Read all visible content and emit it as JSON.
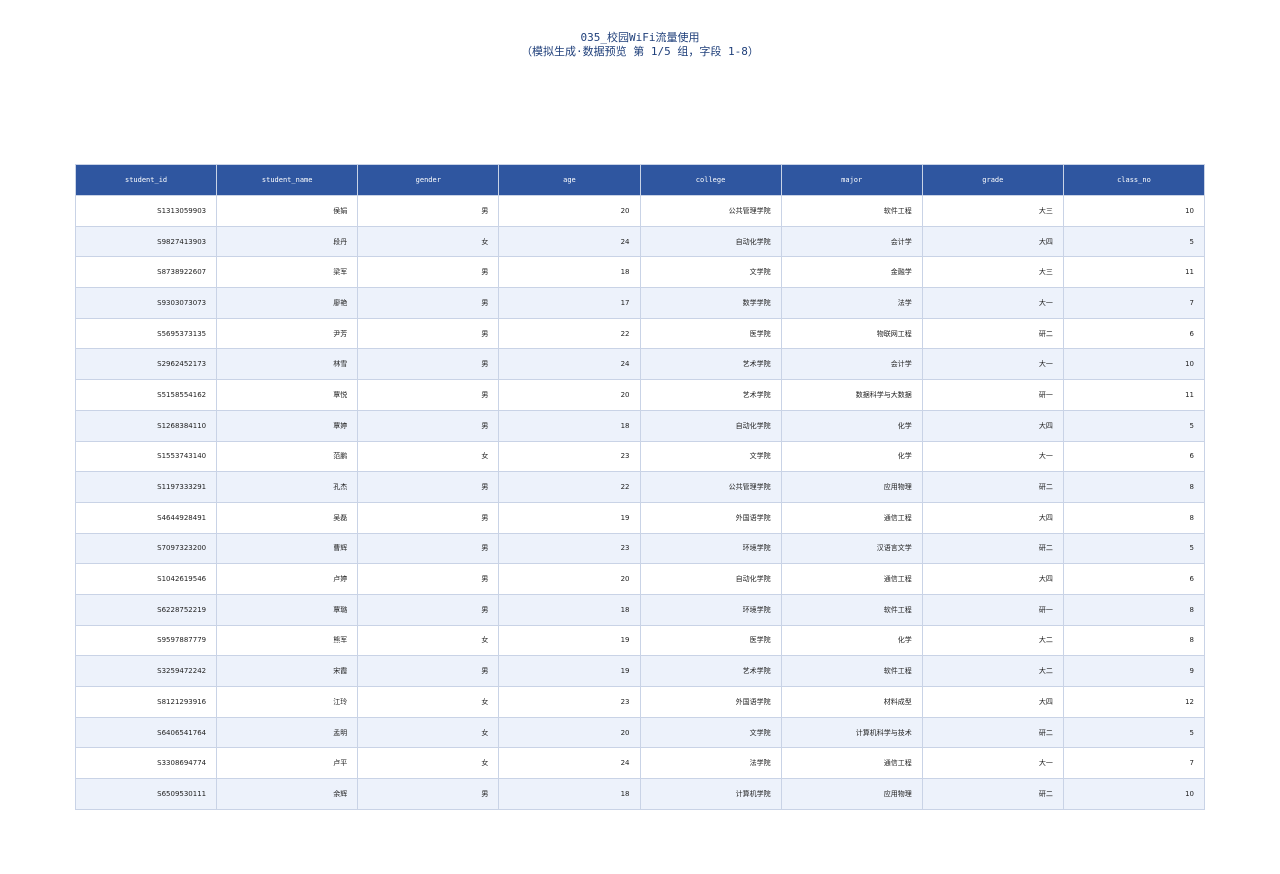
{
  "header": {
    "title": "035_校园WiFi流量使用",
    "subtitle": "（模拟生成·数据预览 第 1/5 组，字段 1-8）"
  },
  "table": {
    "columns": [
      "student_id",
      "student_name",
      "gender",
      "age",
      "college",
      "major",
      "grade",
      "class_no"
    ],
    "rows": [
      [
        "S1313059903",
        "侯娟",
        "男",
        20,
        "公共管理学院",
        "软件工程",
        "大三",
        10
      ],
      [
        "S9827413903",
        "段丹",
        "女",
        24,
        "自动化学院",
        "会计学",
        "大四",
        5
      ],
      [
        "S8738922607",
        "梁军",
        "男",
        18,
        "文学院",
        "金融学",
        "大三",
        11
      ],
      [
        "S9303073073",
        "廖艳",
        "男",
        17,
        "数学学院",
        "法学",
        "大一",
        7
      ],
      [
        "S5695373135",
        "尹芳",
        "男",
        22,
        "医学院",
        "物联网工程",
        "研二",
        6
      ],
      [
        "S2962452173",
        "林雪",
        "男",
        24,
        "艺术学院",
        "会计学",
        "大一",
        10
      ],
      [
        "S5158554162",
        "覃悦",
        "男",
        20,
        "艺术学院",
        "数据科学与大数据",
        "研一",
        11
      ],
      [
        "S1268384110",
        "覃婷",
        "男",
        18,
        "自动化学院",
        "化学",
        "大四",
        5
      ],
      [
        "S1553743140",
        "范鹏",
        "女",
        23,
        "文学院",
        "化学",
        "大一",
        6
      ],
      [
        "S1197333291",
        "孔杰",
        "男",
        22,
        "公共管理学院",
        "应用物理",
        "研二",
        8
      ],
      [
        "S4644928491",
        "吴磊",
        "男",
        19,
        "外国语学院",
        "通信工程",
        "大四",
        8
      ],
      [
        "S7097323200",
        "曹辉",
        "男",
        23,
        "环境学院",
        "汉语言文学",
        "研二",
        5
      ],
      [
        "S1042619546",
        "卢婷",
        "男",
        20,
        "自动化学院",
        "通信工程",
        "大四",
        6
      ],
      [
        "S6228752219",
        "覃璐",
        "男",
        18,
        "环境学院",
        "软件工程",
        "研一",
        8
      ],
      [
        "S9597887779",
        "熊军",
        "女",
        19,
        "医学院",
        "化学",
        "大二",
        8
      ],
      [
        "S3259472242",
        "宋霞",
        "男",
        19,
        "艺术学院",
        "软件工程",
        "大二",
        9
      ],
      [
        "S8121293916",
        "江玲",
        "女",
        23,
        "外国语学院",
        "材料成型",
        "大四",
        12
      ],
      [
        "S6406541764",
        "孟明",
        "女",
        20,
        "文学院",
        "计算机科学与技术",
        "研二",
        5
      ],
      [
        "S3308694774",
        "卢平",
        "女",
        24,
        "法学院",
        "通信工程",
        "大一",
        7
      ],
      [
        "S6509530111",
        "余辉",
        "男",
        18,
        "计算机学院",
        "应用物理",
        "研二",
        10
      ]
    ]
  }
}
